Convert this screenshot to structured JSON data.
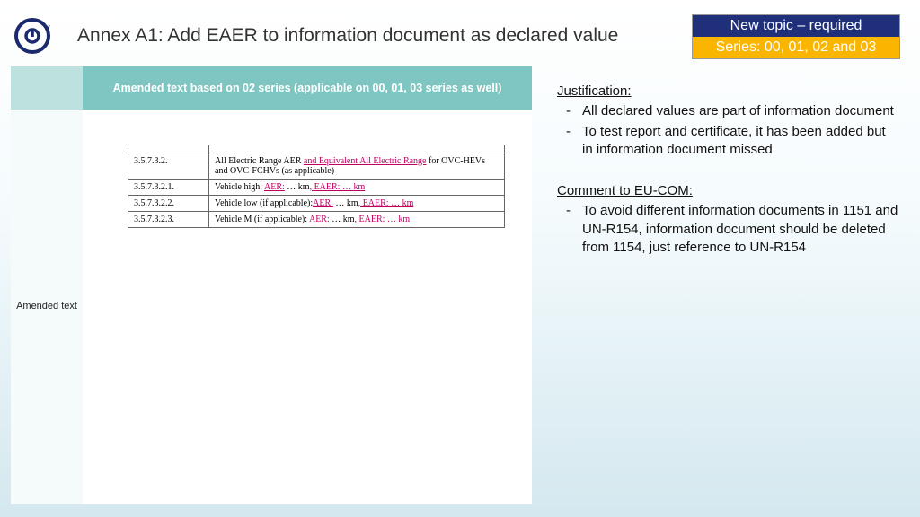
{
  "title": "Annex A1: Add EAER to information document as declared value",
  "badge": {
    "top": "New topic – required",
    "bottom": "Series: 00, 01, 02 and 03",
    "top_bg": "#1f2f7a",
    "bot_bg": "#f9b500"
  },
  "logo": {
    "stroke": "#1a2a6c"
  },
  "table": {
    "header_right": "Amended text based on 02 series (applicable on 00, 01, 03 series as well)",
    "row_label": "Amended text",
    "inner_rows": [
      {
        "num": "3.5.7.3.2.",
        "plain1": "All Electric Range AER ",
        "red": "and Equivalent All Electric Range",
        "plain2": " for OVC-HEVs and OVC-FCHVs (as applicable)"
      },
      {
        "num": "3.5.7.3.2.1.",
        "plain1": "Vehicle high: ",
        "link1": "AER:",
        "mid1": " … km",
        "link2": ", EAER: … km",
        "mid2": ""
      },
      {
        "num": "3.5.7.3.2.2.",
        "plain1": "Vehicle low (if applicable):",
        "link1": "AER:",
        "mid1": " … km",
        "link2": ", EAER: … km",
        "mid2": ""
      },
      {
        "num": "3.5.7.3.2.3.",
        "plain1": "Vehicle M (if applicable): ",
        "link1": "AER:",
        "mid1": " … km",
        "link2": ", EAER: … km",
        "mid2": "|"
      }
    ]
  },
  "justification": {
    "heading": "Justification:",
    "items": [
      "All declared values are part of information document",
      "To test report and certificate, it has been added but in information document missed"
    ]
  },
  "comment": {
    "heading": "Comment to EU-COM:",
    "items": [
      "To avoid different information documents in 1151 and UN-R154, information document should be deleted from 1154, just reference to UN-R154"
    ]
  }
}
